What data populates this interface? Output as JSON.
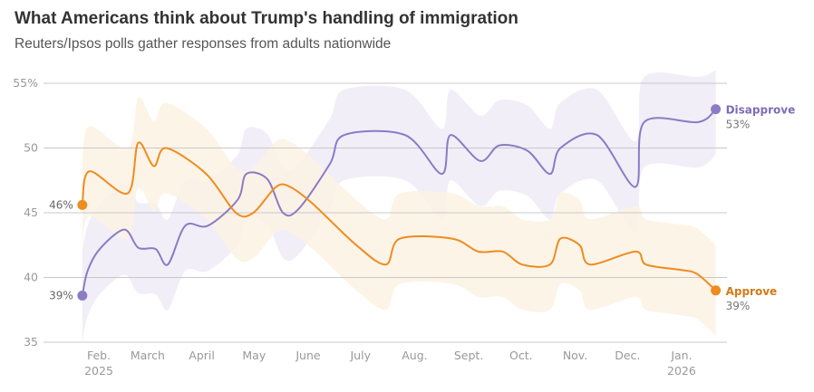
{
  "title": "What Americans think about Trump's handling of immigration",
  "subtitle": "Reuters/Ipsos polls gather responses from adults nationwide",
  "chart_data": {
    "type": "line",
    "title": "What Americans think about Trump's handling of immigration",
    "subtitle": "Reuters/Ipsos polls gather responses from adults nationwide",
    "ylim": [
      35,
      55
    ],
    "y_ticks": [
      {
        "value": 55,
        "label": "55%"
      },
      {
        "value": 50,
        "label": "50"
      },
      {
        "value": 45,
        "label": "45"
      },
      {
        "value": 40,
        "label": "40"
      },
      {
        "value": 35,
        "label": "35"
      }
    ],
    "x_ticks": [
      {
        "date": "2025-02-01",
        "label": "Feb.",
        "sublabel": "2025"
      },
      {
        "date": "2025-03-01",
        "label": "March"
      },
      {
        "date": "2025-04-01",
        "label": "April"
      },
      {
        "date": "2025-05-01",
        "label": "May"
      },
      {
        "date": "2025-06-01",
        "label": "June"
      },
      {
        "date": "2025-07-01",
        "label": "July"
      },
      {
        "date": "2025-08-01",
        "label": "Aug."
      },
      {
        "date": "2025-09-01",
        "label": "Sept."
      },
      {
        "date": "2025-10-01",
        "label": "Oct."
      },
      {
        "date": "2025-11-01",
        "label": "Nov."
      },
      {
        "date": "2025-12-01",
        "label": "Dec."
      },
      {
        "date": "2026-01-01",
        "label": "Jan.",
        "sublabel": "2026"
      }
    ],
    "grid": true,
    "series": [
      {
        "name": "Disapprove",
        "color": "#8c7bc4",
        "band_color": "#eeebf7",
        "ci_margin": 3.5,
        "start_label": "39%",
        "end_label": "53%",
        "points": [
          [
            "2025-01-21",
            38.6
          ],
          [
            "2025-01-24",
            40.5
          ],
          [
            "2025-01-31",
            42.2
          ],
          [
            "2025-02-14",
            43.7
          ],
          [
            "2025-02-22",
            42.3
          ],
          [
            "2025-03-04",
            42.2
          ],
          [
            "2025-03-11",
            41.0
          ],
          [
            "2025-03-21",
            44.0
          ],
          [
            "2025-04-03",
            44.0
          ],
          [
            "2025-04-20",
            46.0
          ],
          [
            "2025-04-25",
            48.0
          ],
          [
            "2025-05-07",
            47.6
          ],
          [
            "2025-05-16",
            45.0
          ],
          [
            "2025-05-25",
            45.3
          ],
          [
            "2025-06-12",
            48.8
          ],
          [
            "2025-06-20",
            51.0
          ],
          [
            "2025-07-25",
            51.0
          ],
          [
            "2025-08-15",
            48.0
          ],
          [
            "2025-08-20",
            51.0
          ],
          [
            "2025-09-06",
            49.0
          ],
          [
            "2025-09-17",
            50.2
          ],
          [
            "2025-10-03",
            49.8
          ],
          [
            "2025-10-16",
            48.0
          ],
          [
            "2025-10-22",
            50.0
          ],
          [
            "2025-11-12",
            51.0
          ],
          [
            "2025-12-04",
            47.0
          ],
          [
            "2025-12-09",
            52.0
          ],
          [
            "2026-01-09",
            52.0
          ],
          [
            "2026-01-19",
            53.0
          ]
        ]
      },
      {
        "name": "Approve",
        "color": "#ee8c1f",
        "band_color": "#fdf2e4",
        "ci_margin": 3.5,
        "start_label": "46%",
        "end_label": "39%",
        "points": [
          [
            "2025-01-21",
            45.6
          ],
          [
            "2025-01-25",
            48.2
          ],
          [
            "2025-02-16",
            46.5
          ],
          [
            "2025-02-22",
            50.4
          ],
          [
            "2025-03-03",
            48.6
          ],
          [
            "2025-03-10",
            50.0
          ],
          [
            "2025-04-02",
            48.0
          ],
          [
            "2025-04-19",
            45.0
          ],
          [
            "2025-04-29",
            45.0
          ],
          [
            "2025-05-12",
            47.0
          ],
          [
            "2025-05-20",
            47.0
          ],
          [
            "2025-06-02",
            45.7
          ],
          [
            "2025-06-27",
            42.5
          ],
          [
            "2025-07-14",
            41.0
          ],
          [
            "2025-07-22",
            43.0
          ],
          [
            "2025-08-21",
            43.0
          ],
          [
            "2025-09-05",
            42.0
          ],
          [
            "2025-09-19",
            42.0
          ],
          [
            "2025-09-30",
            41.0
          ],
          [
            "2025-10-16",
            41.0
          ],
          [
            "2025-10-22",
            43.0
          ],
          [
            "2025-11-02",
            42.5
          ],
          [
            "2025-11-08",
            41.0
          ],
          [
            "2025-12-04",
            42.0
          ],
          [
            "2025-12-10",
            41.0
          ],
          [
            "2025-12-29",
            40.6
          ],
          [
            "2026-01-08",
            40.3
          ],
          [
            "2026-01-19",
            39.0
          ]
        ]
      }
    ]
  }
}
